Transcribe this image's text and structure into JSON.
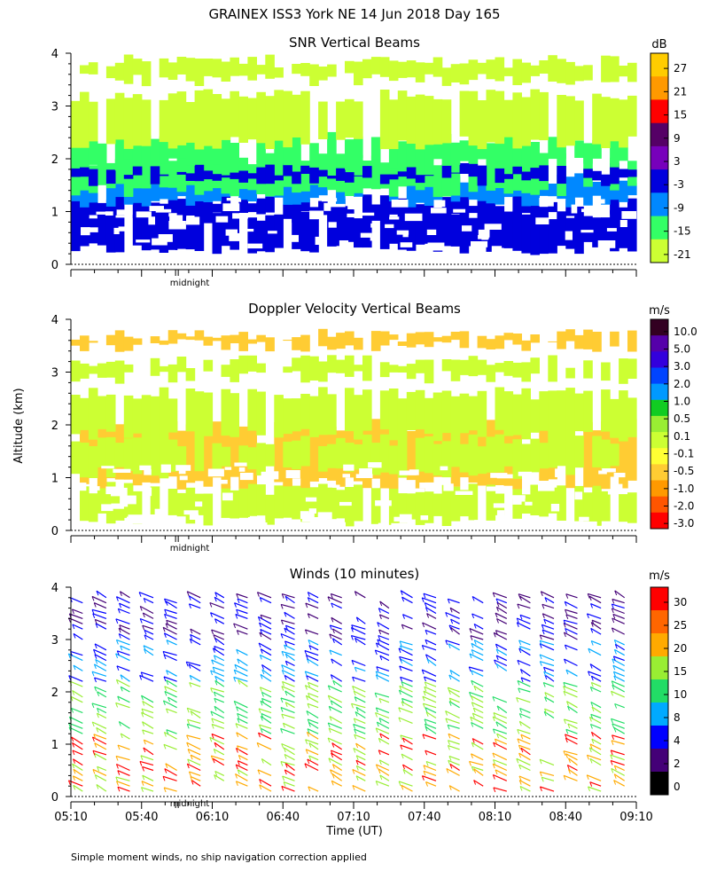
{
  "figure_title": "GRAINEX ISS3 York NE  14 Jun 2018 Day 165",
  "ylabel": "Altitude (km)",
  "xlabel": "Time (UT)",
  "midnight_label": "midnight",
  "footnote": "Simple moment winds, no ship navigation correction applied",
  "chart_data": [
    {
      "type": "heatmap",
      "title": "SNR Vertical Beams",
      "ylim": [
        0,
        4
      ],
      "yticks": [
        "0",
        "1",
        "2",
        "3",
        "4"
      ],
      "x_range": [
        "05:10",
        "09:10"
      ],
      "colorbar": {
        "unit": "dB",
        "labels": [
          "27",
          "21",
          "15",
          "9",
          "3",
          "-3",
          "-9",
          "-15",
          "-21"
        ],
        "colors": [
          "#ffcc00",
          "#ff9900",
          "#ff0000",
          "#550066",
          "#7700bb",
          "#0000dd",
          "#0088ff",
          "#33ff66",
          "#ccff33"
        ]
      },
      "bands": [
        {
          "alt_bottom": 0.3,
          "alt_top": 0.95,
          "color": "#0000dd"
        },
        {
          "alt_bottom": 0.9,
          "alt_top": 1.2,
          "color": "#0000dd"
        },
        {
          "alt_bottom": 1.2,
          "alt_top": 1.6,
          "color": "#0088ff"
        },
        {
          "alt_bottom": 1.4,
          "alt_top": 2.0,
          "color": "#33ff66"
        },
        {
          "alt_bottom": 1.6,
          "alt_top": 1.8,
          "color": "#0000dd"
        },
        {
          "alt_bottom": 1.9,
          "alt_top": 2.4,
          "color": "#33ff66"
        },
        {
          "alt_bottom": 2.3,
          "alt_top": 3.2,
          "color": "#ccff33"
        },
        {
          "alt_bottom": 3.5,
          "alt_top": 3.85,
          "color": "#ccff33"
        }
      ]
    },
    {
      "type": "heatmap",
      "title": "Doppler Velocity Vertical Beams",
      "ylim": [
        0,
        4
      ],
      "yticks": [
        "0",
        "1",
        "2",
        "3",
        "4"
      ],
      "x_range": [
        "05:10",
        "09:10"
      ],
      "colorbar": {
        "unit": "m/s",
        "labels": [
          "10.0",
          "5.0",
          "3.0",
          "2.0",
          "1.0",
          "0.5",
          "0.1",
          "-0.1",
          "-0.5",
          "-1.0",
          "-2.0",
          "-3.0"
        ],
        "colors": [
          "#330022",
          "#5500aa",
          "#3300dd",
          "#0044ff",
          "#0099ff",
          "#11cc22",
          "#99ee33",
          "#ccff33",
          "#ffff33",
          "#ffcc33",
          "#ff9900",
          "#ff5500",
          "#ff0000"
        ]
      },
      "bands": [
        {
          "alt_bottom": 0.2,
          "alt_top": 0.8,
          "color": "#ccff33"
        },
        {
          "alt_bottom": 0.9,
          "alt_top": 2.0,
          "color": "#ffcc33"
        },
        {
          "alt_bottom": 1.1,
          "alt_top": 1.7,
          "color": "#ccff33"
        },
        {
          "alt_bottom": 1.8,
          "alt_top": 2.6,
          "color": "#ccff33"
        },
        {
          "alt_bottom": 2.9,
          "alt_top": 3.2,
          "color": "#ccff33"
        },
        {
          "alt_bottom": 3.5,
          "alt_top": 3.7,
          "color": "#ffcc33"
        }
      ]
    },
    {
      "type": "scatter",
      "title": "Winds (10 minutes)",
      "ylim": [
        0,
        4
      ],
      "yticks": [
        "0",
        "1",
        "2",
        "3",
        "4"
      ],
      "xticks": [
        "05:10",
        "05:40",
        "06:10",
        "06:40",
        "07:10",
        "07:40",
        "08:10",
        "08:40",
        "09:10"
      ],
      "colorbar": {
        "unit": "m/s",
        "labels": [
          "30",
          "25",
          "20",
          "15",
          "10",
          "8",
          "4",
          "2",
          "0"
        ],
        "colors": [
          "#ff0000",
          "#ff6600",
          "#ffaa00",
          "#99ee33",
          "#22dd66",
          "#00aaff",
          "#0000ff",
          "#440077",
          "#000000"
        ]
      },
      "profile_times": [
        "05:15",
        "05:25",
        "05:35",
        "05:45",
        "05:55",
        "06:05",
        "06:15",
        "06:25",
        "06:35",
        "06:45",
        "06:55",
        "07:05",
        "07:15",
        "07:25",
        "07:35",
        "07:45",
        "07:55",
        "08:05",
        "08:15",
        "08:25",
        "08:35",
        "08:45",
        "08:55",
        "09:05"
      ],
      "altitude_range_km": [
        0.1,
        3.9
      ]
    }
  ]
}
